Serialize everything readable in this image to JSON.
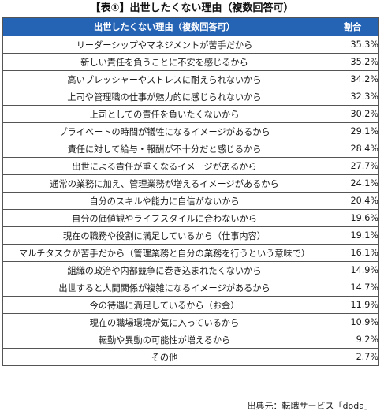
{
  "title": "【表①】出世したくない理由（複数回答可）",
  "table": {
    "headers": {
      "reason": "出世したくない理由（複数回答可）",
      "ratio": "割合"
    },
    "rows": [
      {
        "reason": "リーダーシップやマネジメントが苦手だから",
        "ratio": "35.3%"
      },
      {
        "reason": "新しい責任を負うことに不安を感じるから",
        "ratio": "35.2%"
      },
      {
        "reason": "高いプレッシャーやストレスに耐えられないから",
        "ratio": "34.2%"
      },
      {
        "reason": "上司や管理職の仕事が魅力的に感じられないから",
        "ratio": "32.3%"
      },
      {
        "reason": "上司としての責任を負いたくないから",
        "ratio": "30.2%"
      },
      {
        "reason": "プライベートの時間が犠牲になるイメージがあるから",
        "ratio": "29.1%"
      },
      {
        "reason": "責任に対して給与・報酬が不十分だと感じるから",
        "ratio": "28.4%"
      },
      {
        "reason": "出世による責任が重くなるイメージがあるから",
        "ratio": "27.7%"
      },
      {
        "reason": "通常の業務に加え、管理業務が増えるイメージがあるから",
        "ratio": "24.1%"
      },
      {
        "reason": "自分のスキルや能力に自信がないから",
        "ratio": "20.4%"
      },
      {
        "reason": "自分の価値観やライフスタイルに合わないから",
        "ratio": "19.6%"
      },
      {
        "reason": "現在の職務や役割に満足しているから（仕事内容）",
        "ratio": "19.1%"
      },
      {
        "reason": "マルチタスクが苦手だから（管理業務と自分の業務を行うという意味で）",
        "ratio": "16.1%"
      },
      {
        "reason": "組織の政治や内部競争に巻き込まれたくないから",
        "ratio": "14.9%"
      },
      {
        "reason": "出世すると人間関係が複雑になるイメージがあるから",
        "ratio": "14.7%"
      },
      {
        "reason": "今の待遇に満足しているから（お金）",
        "ratio": "11.9%"
      },
      {
        "reason": "現在の職場環境が気に入っているから",
        "ratio": "10.9%"
      },
      {
        "reason": "転勤や異動の可能性が増えるから",
        "ratio": "9.2%"
      },
      {
        "reason": "その他",
        "ratio": "2.7%"
      }
    ]
  },
  "source": "出典元：転職サービス「doda」",
  "colors": {
    "header_bg": "#2563b5",
    "header_text": "#ffffff",
    "border": "#555555"
  }
}
